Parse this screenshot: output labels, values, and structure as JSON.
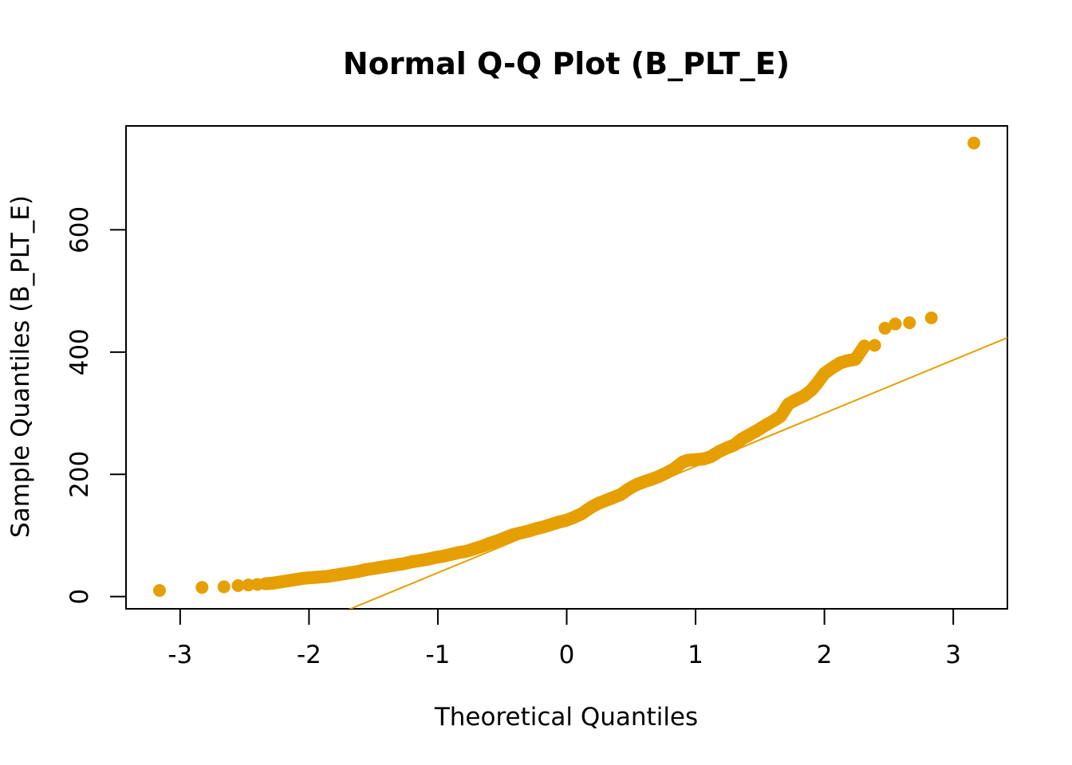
{
  "chart_data": {
    "type": "scatter",
    "title": "Normal Q-Q Plot (B_PLT_E)",
    "xlabel": "Theoretical Quantiles",
    "ylabel": "Sample Quantiles (B_PLT_E)",
    "xlim": [
      -3.42,
      3.42
    ],
    "ylim": [
      -20,
      770
    ],
    "xticks": [
      -3,
      -2,
      -1,
      0,
      1,
      2,
      3
    ],
    "xtick_labels": [
      "-3",
      "-2",
      "-1",
      "0",
      "1",
      "2",
      "3"
    ],
    "yticks": [
      0,
      200,
      400,
      600
    ],
    "ytick_labels": [
      "0",
      "200",
      "400",
      "600"
    ],
    "grid": false,
    "point_color": "#E69F00",
    "reference_line": {
      "name": "qqline",
      "intercept": 126,
      "slope": 87,
      "color": "#E69F00"
    },
    "points": {
      "x": [
        -3.16,
        -2.83,
        -2.66,
        -2.55,
        -2.47,
        -2.4,
        -2.34,
        -2.28,
        -2.22,
        -2.16,
        -2.1,
        -2.04,
        -1.98,
        -1.92,
        -1.86,
        -1.8,
        -1.74,
        -1.68,
        -1.62,
        -1.56,
        -1.5,
        -1.44,
        -1.38,
        -1.32,
        -1.26,
        -1.2,
        -1.14,
        -1.08,
        -1.02,
        -0.96,
        -0.9,
        -0.84,
        -0.78,
        -0.72,
        -0.66,
        -0.6,
        -0.54,
        -0.48,
        -0.42,
        -0.36,
        -0.3,
        -0.24,
        -0.18,
        -0.12,
        -0.06,
        0.0,
        0.06,
        0.12,
        0.18,
        0.24,
        0.3,
        0.36,
        0.42,
        0.48,
        0.54,
        0.6,
        0.66,
        0.72,
        0.78,
        0.84,
        0.9,
        0.94,
        1.0,
        1.06,
        1.12,
        1.18,
        1.24,
        1.3,
        1.36,
        1.42,
        1.48,
        1.54,
        1.6,
        1.66,
        1.72,
        1.78,
        1.84,
        1.9,
        1.94,
        2.0,
        2.06,
        2.12,
        2.18,
        2.24,
        2.31,
        2.39,
        2.47,
        2.55,
        2.66,
        2.83,
        3.16
      ],
      "y": [
        10,
        15,
        16,
        18,
        19,
        20,
        21,
        22,
        24,
        26,
        28,
        30,
        31,
        32,
        33,
        35,
        37,
        39,
        41,
        44,
        46,
        48,
        50,
        52,
        54,
        57,
        59,
        61,
        64,
        66,
        69,
        72,
        74,
        78,
        82,
        87,
        91,
        96,
        101,
        104,
        107,
        111,
        114,
        118,
        122,
        125,
        130,
        136,
        145,
        152,
        157,
        162,
        167,
        176,
        183,
        188,
        192,
        197,
        203,
        210,
        220,
        223,
        224,
        225,
        229,
        237,
        243,
        248,
        258,
        265,
        272,
        280,
        287,
        295,
        315,
        322,
        328,
        338,
        348,
        365,
        374,
        382,
        386,
        388,
        410,
        411,
        439,
        446,
        448,
        456,
        742
      ]
    }
  }
}
